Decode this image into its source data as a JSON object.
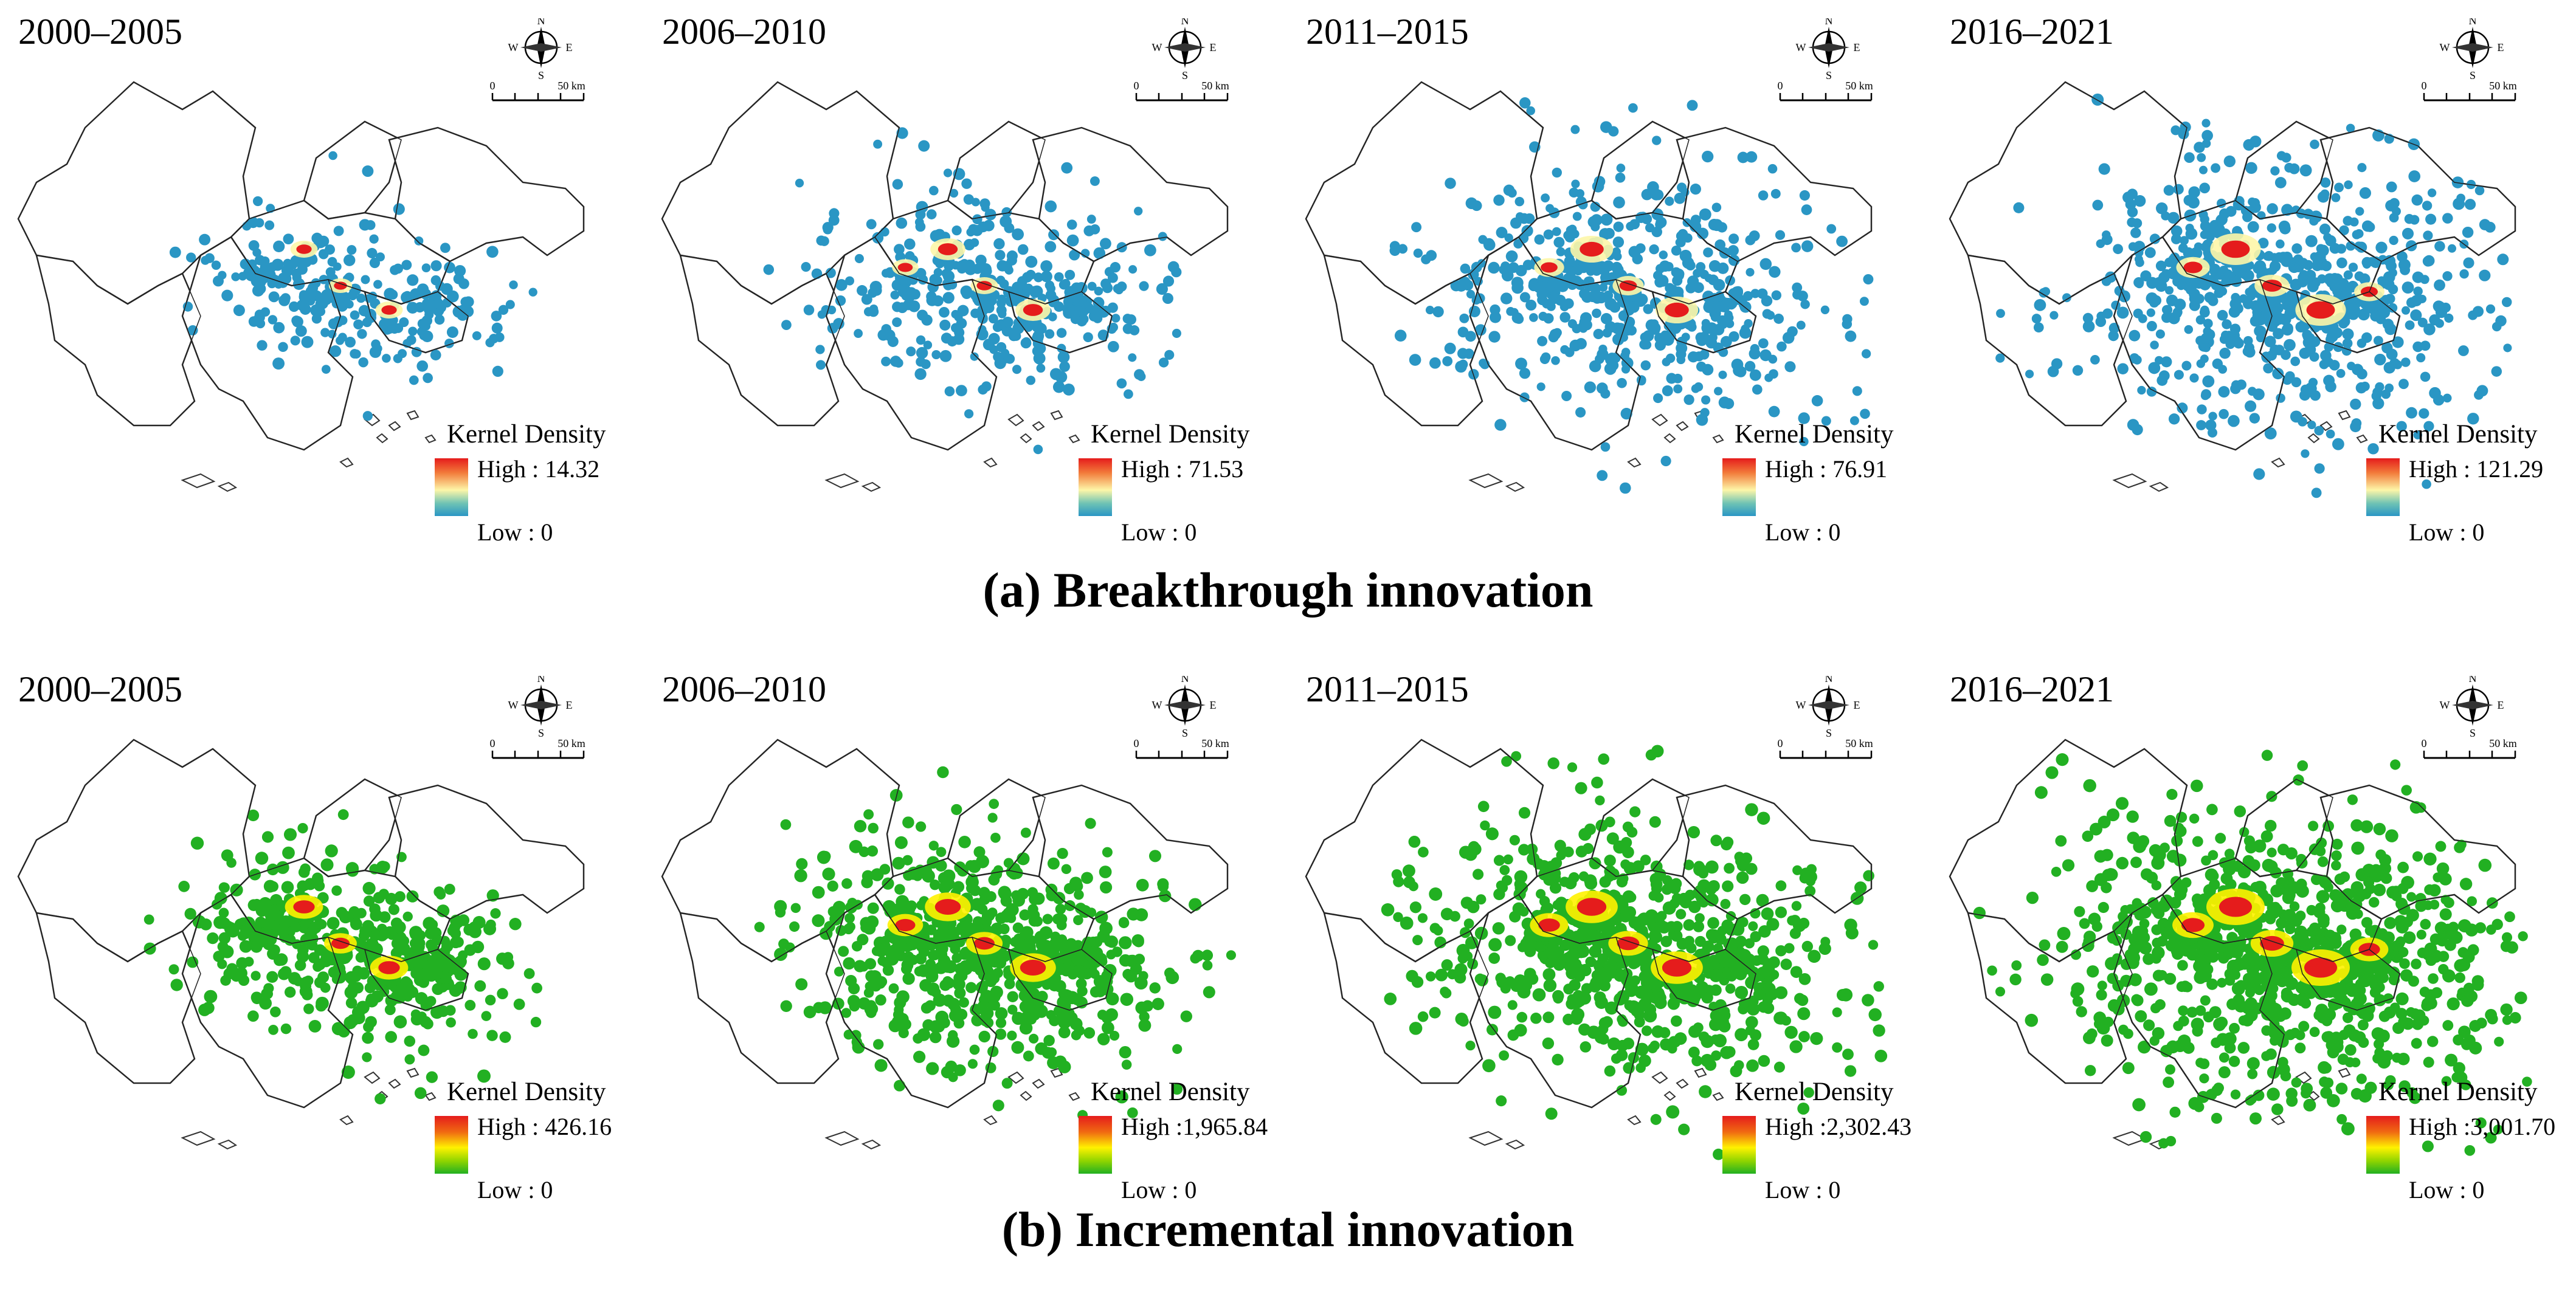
{
  "colors": {
    "breakthrough_low": "#2a96c4",
    "breakthrough_high": "#e51c1c",
    "incremental_low": "#22b022",
    "incremental_high": "#e51c1c",
    "boundary": "#333333"
  },
  "scale_bar": {
    "zero": "0",
    "distance": "50 km"
  },
  "compass": {
    "n": "N",
    "s": "S",
    "e": "E",
    "w": "W"
  },
  "legend_title": "Kernel Density",
  "breakthrough": {
    "caption": "(a) Breakthrough innovation",
    "panels": [
      {
        "period": "2000–2005",
        "high": "High : 14.32",
        "low": "Low : 0",
        "high_value": 14.32,
        "intensity": 0.25
      },
      {
        "period": "2006–2010",
        "high": "High : 71.53",
        "low": "Low : 0",
        "high_value": 71.53,
        "intensity": 0.5
      },
      {
        "period": "2011–2015",
        "high": "High : 76.91",
        "low": "Low : 0",
        "high_value": 76.91,
        "intensity": 0.75
      },
      {
        "period": "2016–2021",
        "high": "High : 121.29",
        "low": "Low : 0",
        "high_value": 121.29,
        "intensity": 1.0
      }
    ]
  },
  "incremental": {
    "caption": "(b) Incremental innovation",
    "panels": [
      {
        "period": "2000–2005",
        "high": "High : 426.16",
        "low": "Low : 0",
        "high_value": 426.16,
        "intensity": 0.35
      },
      {
        "period": "2006–2010",
        "high": "High :1,965.84",
        "low": "Low : 0",
        "high_value": 1965.84,
        "intensity": 0.6
      },
      {
        "period": "2011–2015",
        "high": "High :2,302.43",
        "low": "Low : 0",
        "high_value": 2302.43,
        "intensity": 0.8
      },
      {
        "period": "2016–2021",
        "high": "High :3,001.70",
        "low": "Low : 0",
        "high_value": 3001.7,
        "intensity": 1.0
      }
    ]
  }
}
